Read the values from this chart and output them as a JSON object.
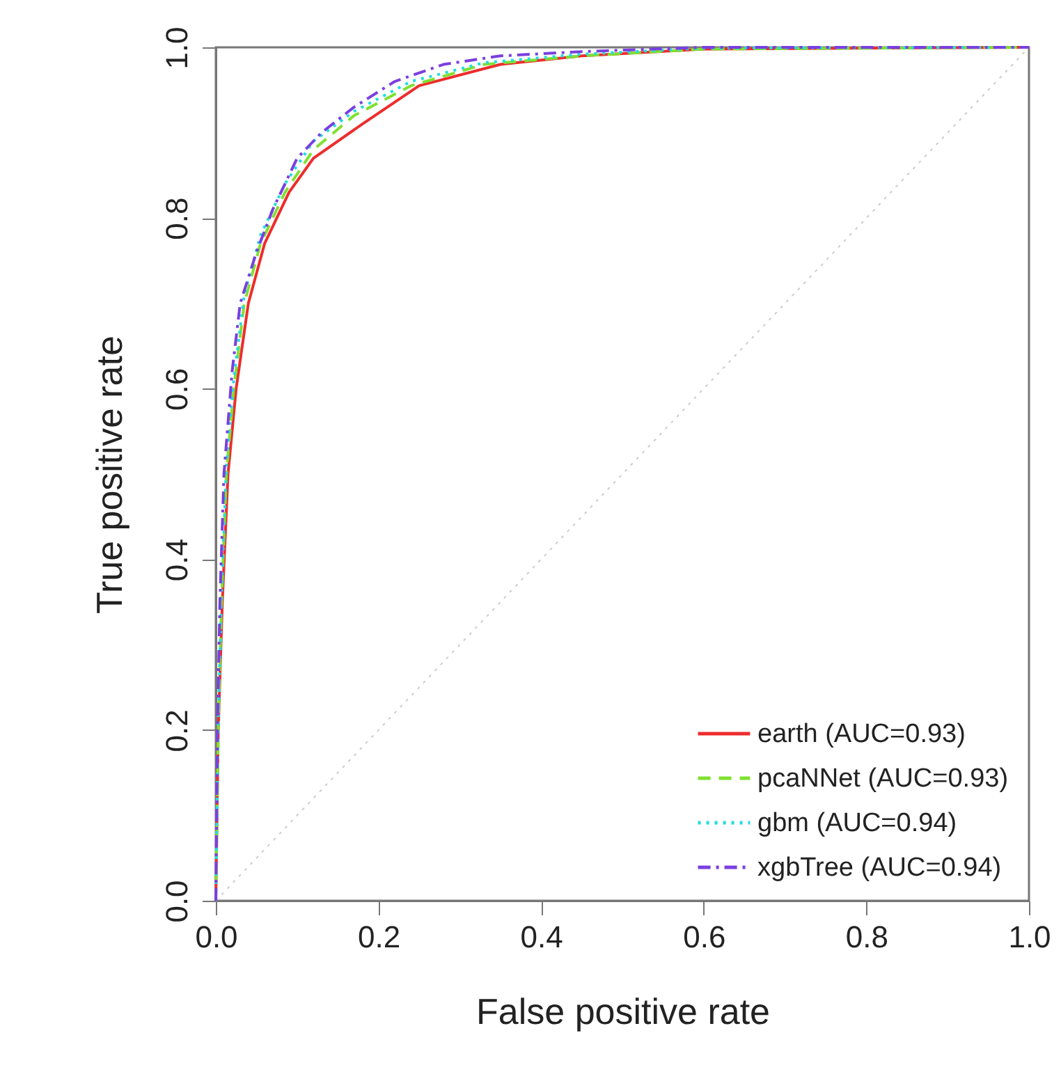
{
  "chart_data": {
    "type": "line",
    "xlabel": "False positive rate",
    "ylabel": "True positive rate",
    "xlim": [
      0,
      1
    ],
    "ylim": [
      0,
      1
    ],
    "xticks": [
      {
        "value": 0,
        "label": "0.0"
      },
      {
        "value": 0.2,
        "label": "0.2"
      },
      {
        "value": 0.4,
        "label": "0.4"
      },
      {
        "value": 0.6,
        "label": "0.6"
      },
      {
        "value": 0.8,
        "label": "0.8"
      },
      {
        "value": 1,
        "label": "1.0"
      }
    ],
    "yticks": [
      {
        "value": 0,
        "label": "0.0"
      },
      {
        "value": 0.2,
        "label": "0.2"
      },
      {
        "value": 0.4,
        "label": "0.4"
      },
      {
        "value": 0.6,
        "label": "0.6"
      },
      {
        "value": 0.8,
        "label": "0.8"
      },
      {
        "value": 1,
        "label": "1.0"
      }
    ],
    "grid": false,
    "legend": "bottom right",
    "marker": "none",
    "series": [
      {
        "name": "earth (AUC=0.93)",
        "color": "#ee2c2c",
        "line_style": "solid",
        "x": [
          0,
          0.003,
          0.008,
          0.015,
          0.025,
          0.04,
          0.06,
          0.09,
          0.12,
          0.18,
          0.25,
          0.35,
          0.45,
          0.6,
          1
        ],
        "values": [
          0,
          0.2,
          0.35,
          0.5,
          0.6,
          0.7,
          0.77,
          0.83,
          0.87,
          0.91,
          0.955,
          0.98,
          0.99,
          0.998,
          1
        ]
      },
      {
        "name": "pcaNNet (AUC=0.93)",
        "color": "#7fe030",
        "line_style": "dashed",
        "x": [
          0,
          0.003,
          0.007,
          0.013,
          0.022,
          0.035,
          0.055,
          0.085,
          0.12,
          0.17,
          0.24,
          0.33,
          0.45,
          0.6,
          1
        ],
        "values": [
          0,
          0.2,
          0.35,
          0.5,
          0.6,
          0.7,
          0.77,
          0.83,
          0.88,
          0.92,
          0.955,
          0.98,
          0.99,
          0.998,
          1
        ]
      },
      {
        "name": "gbm (AUC=0.94)",
        "color": "#22dddd",
        "line_style": "dotted",
        "x": [
          0,
          0.003,
          0.007,
          0.013,
          0.022,
          0.035,
          0.055,
          0.085,
          0.12,
          0.17,
          0.24,
          0.33,
          0.45,
          0.6,
          1
        ],
        "values": [
          0,
          0.21,
          0.36,
          0.51,
          0.61,
          0.71,
          0.78,
          0.84,
          0.89,
          0.925,
          0.96,
          0.982,
          0.992,
          0.999,
          1
        ]
      },
      {
        "name": "xgbTree (AUC=0.94)",
        "color": "#7a3fe0",
        "line_style": "dashdot",
        "x": [
          0,
          0.002,
          0.005,
          0.01,
          0.02,
          0.03,
          0.05,
          0.07,
          0.1,
          0.13,
          0.17,
          0.22,
          0.28,
          0.35,
          0.45,
          0.6,
          1
        ],
        "values": [
          0,
          0.2,
          0.35,
          0.5,
          0.62,
          0.7,
          0.76,
          0.81,
          0.87,
          0.9,
          0.93,
          0.96,
          0.98,
          0.99,
          0.995,
          1,
          1
        ]
      },
      {
        "color": "#cccccc",
        "line_style": "dotted",
        "x": [
          0,
          1
        ],
        "values": [
          0,
          1
        ]
      }
    ]
  }
}
